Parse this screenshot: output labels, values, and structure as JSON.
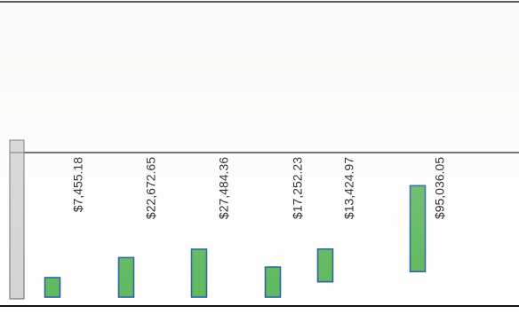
{
  "chart_data": {
    "type": "waterfall",
    "categories": [
      "",
      "",
      "",
      "",
      "",
      ""
    ],
    "series": [
      {
        "values": [
          7455.18,
          22672.65,
          27484.36,
          17252.23,
          13424.97,
          95036.05
        ],
        "labels": [
          "$7,455.18",
          "$22,672.65",
          "$27,484.36",
          "$17,252.23",
          "$13,424.97",
          "$95,036.05"
        ]
      }
    ],
    "bar_color": "#5cb85c",
    "bar_stroke": "#2a5e9c",
    "ylim": [
      0,
      160000
    ],
    "grid": false,
    "legend": "none",
    "title": "",
    "xlabel": "",
    "ylabel": ""
  }
}
